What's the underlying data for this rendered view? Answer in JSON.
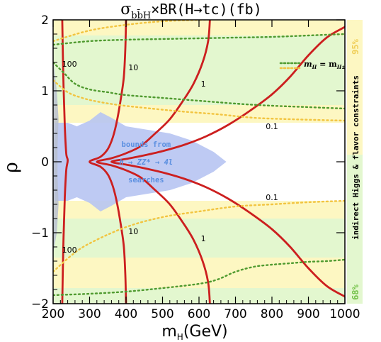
{
  "chart_data": {
    "type": "line",
    "title": {
      "main": "σ",
      "main_sub": "bb̄H",
      "mid": "×BR(H→tc)(fb)"
    },
    "xlabel": {
      "main": "m",
      "sub": "H",
      "unit": "(GeV)"
    },
    "ylabel": "ρ",
    "xlim": [
      200,
      1000
    ],
    "ylim": [
      -2,
      2
    ],
    "x_ticks": [
      "200",
      "300",
      "400",
      "500",
      "600",
      "700",
      "800",
      "900",
      "1000"
    ],
    "y_ticks": [
      "−2",
      "−1",
      "0",
      "1",
      "2"
    ],
    "grid": false,
    "right_label": "indirect Higgs & flavor constraints",
    "right_label_95": "95%",
    "right_label_68": "68%",
    "legend": {
      "entries": [
        {
          "label_main": "m",
          "label_sub": "H",
          "label_rest": " = m",
          "label_sub2": "H±",
          "color": "#4f9a2f",
          "style": "dotted"
        },
        {
          "label_main": "",
          "color": "#f2c440",
          "style": "dotted"
        }
      ],
      "placement": "top-right"
    },
    "blue_annotation": [
      "bounds from",
      "h → ZZ* → 4l",
      "searches"
    ],
    "contour_labels": [
      {
        "text": "100",
        "x": 245,
        "y": 1.38
      },
      {
        "text": "10",
        "x": 420,
        "y": 1.33
      },
      {
        "text": "1",
        "x": 612,
        "y": 1.1
      },
      {
        "text": "0.1",
        "x": 800,
        "y": 0.5
      },
      {
        "text": "0.1",
        "x": 800,
        "y": -0.5
      },
      {
        "text": "1",
        "x": 612,
        "y": -1.08
      },
      {
        "text": "10",
        "x": 420,
        "y": -0.98
      },
      {
        "text": "100",
        "x": 245,
        "y": -1.24
      }
    ],
    "bands": {
      "yellow": [
        [
          1.78,
          2.0
        ],
        [
          0.55,
          0.8
        ],
        [
          -0.55,
          -0.8
        ],
        [
          -1.35,
          -1.78
        ]
      ],
      "green": [
        [
          0.8,
          1.78
        ],
        [
          -0.8,
          -1.35
        ],
        [
          -1.78,
          -2.0
        ]
      ]
    },
    "series": [
      {
        "name": "contour-100",
        "color": "#cc1f1f",
        "x": [
          225,
          228,
          232,
          236,
          240,
          236,
          232,
          228,
          225
        ],
        "y": [
          2.0,
          1.2,
          0.5,
          0.12,
          0.02,
          -0.12,
          -0.5,
          -1.2,
          -2.0
        ]
      },
      {
        "name": "contour-10",
        "color": "#cc1f1f",
        "x": [
          400,
          398,
          394,
          386,
          376,
          364,
          350,
          330,
          300,
          330,
          350,
          364,
          376,
          386,
          394,
          398,
          400
        ],
        "y": [
          2.0,
          1.6,
          1.2,
          0.9,
          0.6,
          0.35,
          0.18,
          0.07,
          0.0,
          -0.07,
          -0.18,
          -0.35,
          -0.6,
          -0.9,
          -1.2,
          -1.6,
          -2.0
        ]
      },
      {
        "name": "contour-1",
        "color": "#cc1f1f",
        "x": [
          630,
          625,
          610,
          585,
          555,
          520,
          480,
          440,
          400,
          360,
          320,
          360,
          400,
          440,
          480,
          520,
          555,
          585,
          610,
          625,
          630
        ],
        "y": [
          2.0,
          1.7,
          1.4,
          1.1,
          0.85,
          0.6,
          0.4,
          0.22,
          0.12,
          0.05,
          0.0,
          -0.05,
          -0.12,
          -0.22,
          -0.4,
          -0.6,
          -0.85,
          -1.1,
          -1.4,
          -1.7,
          -2.0
        ]
      },
      {
        "name": "contour-0.1",
        "color": "#cc1f1f",
        "x": [
          1000,
          950,
          900,
          850,
          800,
          740,
          680,
          620,
          560,
          500,
          440,
          400,
          360,
          400,
          440,
          500,
          560,
          620,
          680,
          740,
          800,
          850,
          900,
          950,
          1000
        ],
        "y": [
          1.9,
          1.75,
          1.5,
          1.2,
          0.95,
          0.72,
          0.52,
          0.36,
          0.24,
          0.15,
          0.08,
          0.04,
          0.0,
          -0.04,
          -0.08,
          -0.15,
          -0.24,
          -0.36,
          -0.52,
          -0.72,
          -0.95,
          -1.2,
          -1.5,
          -1.75,
          -1.9
        ]
      },
      {
        "name": "mH-eq-mH±-upper",
        "color": "#4f9a2f",
        "x": [
          200,
          300,
          400,
          500,
          600,
          700,
          800,
          900,
          1000
        ],
        "y": [
          1.65,
          1.7,
          1.72,
          1.73,
          1.74,
          1.75,
          1.76,
          1.78,
          1.8
        ]
      },
      {
        "name": "mH-eq-mH±-mid",
        "color": "#4f9a2f",
        "x": [
          200,
          230,
          260,
          300,
          350,
          400,
          500,
          600,
          700,
          800,
          900,
          1000
        ],
        "y": [
          1.4,
          1.25,
          1.1,
          1.02,
          0.98,
          0.94,
          0.9,
          0.86,
          0.82,
          0.79,
          0.77,
          0.75
        ]
      },
      {
        "name": "mH-eq-mH±-lower",
        "color": "#4f9a2f",
        "x": [
          200,
          300,
          400,
          500,
          600,
          650,
          700,
          750,
          800,
          850,
          900,
          950,
          1000
        ],
        "y": [
          -1.88,
          -1.86,
          -1.83,
          -1.78,
          -1.72,
          -1.66,
          -1.55,
          -1.48,
          -1.45,
          -1.43,
          -1.41,
          -1.4,
          -1.38
        ]
      },
      {
        "name": "yellow-upper-top",
        "color": "#f2c440",
        "x": [
          200,
          300,
          400,
          500,
          600,
          700,
          800,
          900,
          1000
        ],
        "y": [
          1.7,
          1.85,
          1.93,
          1.98,
          2.0,
          2.02,
          2.03,
          2.04,
          2.05
        ]
      },
      {
        "name": "yellow-upper-mid",
        "color": "#f2c440",
        "x": [
          200,
          240,
          280,
          320,
          380,
          450,
          550,
          650,
          750,
          850,
          1000
        ],
        "y": [
          1.15,
          0.98,
          0.9,
          0.85,
          0.8,
          0.76,
          0.71,
          0.67,
          0.62,
          0.6,
          0.58
        ]
      },
      {
        "name": "yellow-lower",
        "color": "#f2c440",
        "x": [
          200,
          250,
          300,
          400,
          500,
          600,
          700,
          800,
          900,
          1000
        ],
        "y": [
          -1.55,
          -1.32,
          -1.15,
          -0.92,
          -0.78,
          -0.7,
          -0.63,
          -0.6,
          -0.57,
          -0.55
        ]
      }
    ]
  }
}
